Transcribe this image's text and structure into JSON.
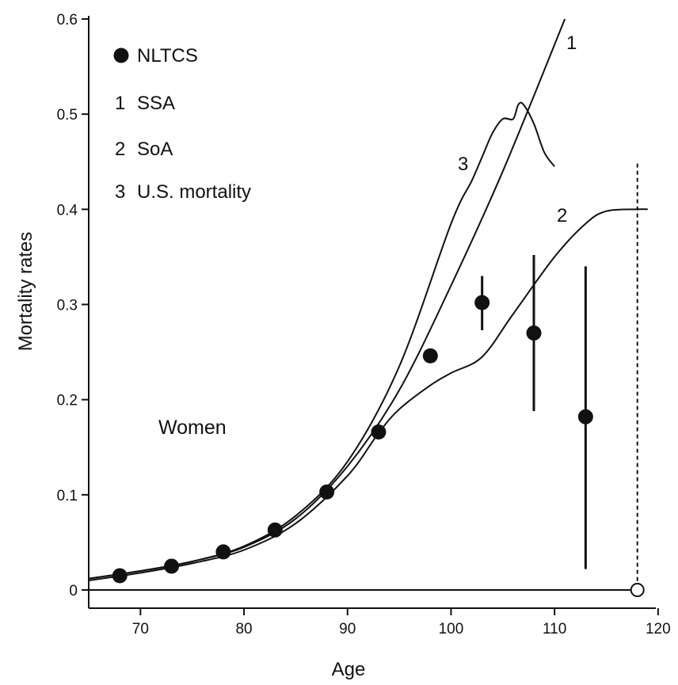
{
  "chart_data": {
    "type": "line",
    "title": "",
    "xlabel": "Age",
    "ylabel": "Mortality rates",
    "xlim": [
      65,
      120
    ],
    "ylim": [
      0,
      0.6
    ],
    "x_ticks": [
      70,
      80,
      90,
      100,
      110,
      120
    ],
    "y_ticks": [
      0,
      0.1,
      0.2,
      0.3,
      0.4,
      0.5,
      0.6
    ],
    "y_tick_labels": [
      "0",
      "0.1",
      "0.2",
      "0.3",
      "0.4",
      "0.5",
      "0.6"
    ],
    "grid": false,
    "legend_position": "top-left",
    "annotation": "Women",
    "colors": {
      "ink": "#111111",
      "background": "#ffffff"
    },
    "legend": [
      {
        "marker": "filled-circle",
        "label": "NLTCS"
      },
      {
        "marker": "1",
        "label": "SSA"
      },
      {
        "marker": "2",
        "label": "SoA"
      },
      {
        "marker": "3",
        "label": "U.S. mortality"
      }
    ],
    "points": {
      "name": "NLTCS",
      "x": [
        68,
        73,
        78,
        83,
        88,
        93,
        98,
        103,
        108,
        113
      ],
      "y": [
        0.015,
        0.025,
        0.04,
        0.063,
        0.103,
        0.166,
        0.246,
        0.302,
        0.27,
        0.182
      ],
      "err_low": [
        null,
        null,
        null,
        null,
        null,
        null,
        null,
        0.273,
        0.188,
        0.022
      ],
      "err_high": [
        null,
        null,
        null,
        null,
        null,
        null,
        null,
        0.33,
        0.352,
        0.34
      ]
    },
    "series": [
      {
        "label": "1",
        "x": [
          65,
          70,
          75,
          80,
          85,
          90,
          95,
          100,
          105,
          111
        ],
        "y": [
          0.012,
          0.02,
          0.03,
          0.045,
          0.075,
          0.13,
          0.21,
          0.32,
          0.44,
          0.6
        ]
      },
      {
        "label": "2",
        "x": [
          65,
          70,
          75,
          80,
          85,
          90,
          93,
          95,
          98,
          100,
          103,
          106,
          110,
          113,
          115,
          118,
          119
        ],
        "y": [
          0.01,
          0.018,
          0.028,
          0.042,
          0.07,
          0.12,
          0.165,
          0.19,
          0.215,
          0.228,
          0.245,
          0.29,
          0.35,
          0.385,
          0.398,
          0.4,
          0.4
        ]
      },
      {
        "label": "3",
        "x": [
          65,
          70,
          75,
          80,
          85,
          90,
          95,
          100,
          102,
          103,
          104,
          105,
          106,
          106.5,
          107,
          108,
          109,
          110
        ],
        "y": [
          0.012,
          0.02,
          0.03,
          0.046,
          0.078,
          0.135,
          0.235,
          0.385,
          0.43,
          0.455,
          0.48,
          0.495,
          0.495,
          0.51,
          0.51,
          0.49,
          0.46,
          0.445
        ]
      }
    ],
    "vline": {
      "x": 118,
      "style": "dashed",
      "y_top": 0.448,
      "open_marker_y": 0
    }
  }
}
